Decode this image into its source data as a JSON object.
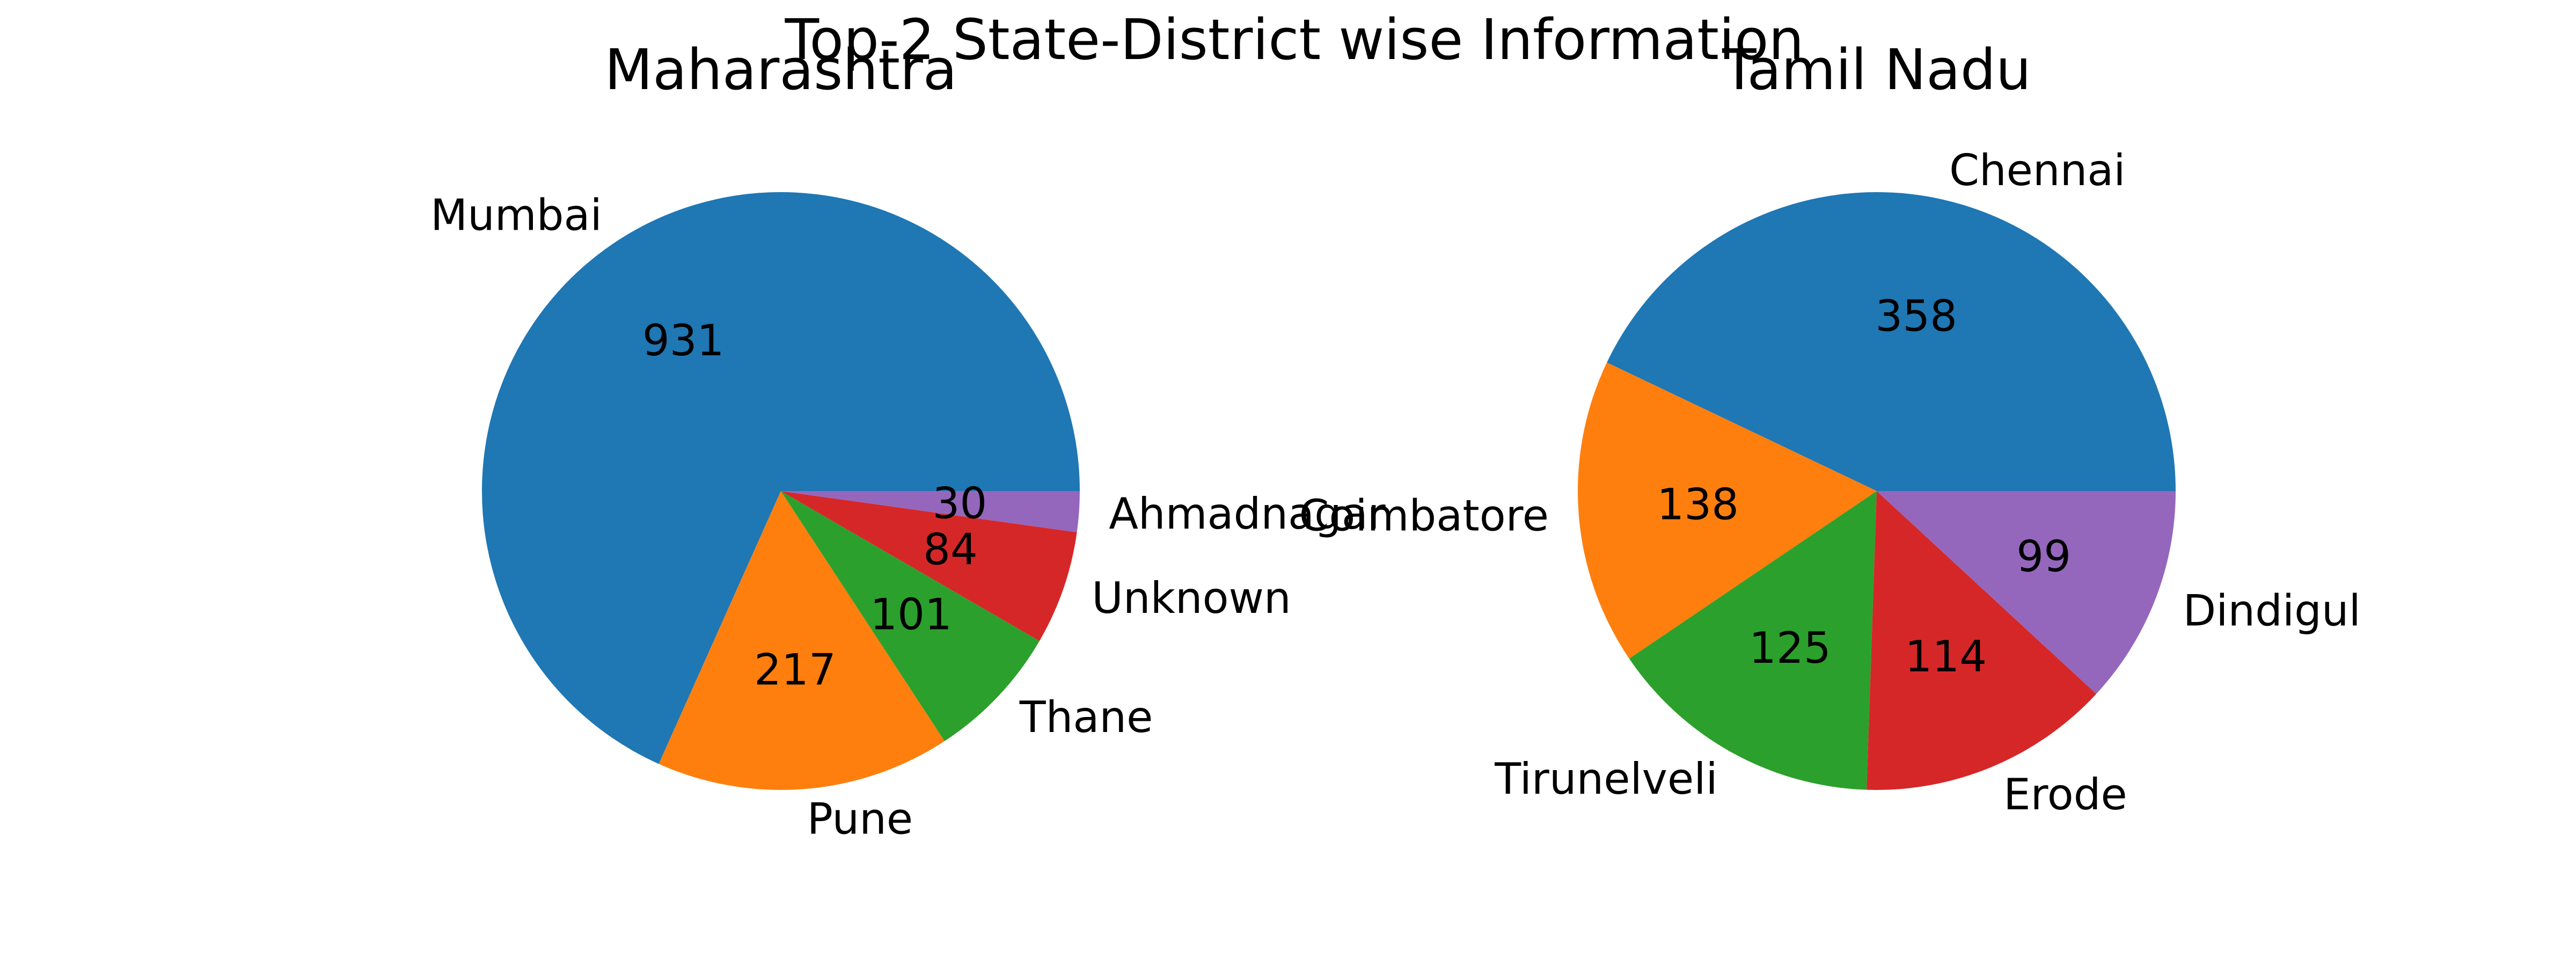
{
  "chart_data": {
    "suptitle": "Top-2 State-District wise Information",
    "charts": [
      {
        "type": "pie",
        "title": "Maharashtra",
        "categories": [
          "Mumbai",
          "Pune",
          "Thane",
          "Unknown",
          "Ahmadnagar"
        ],
        "values": [
          931,
          217,
          101,
          84,
          30
        ],
        "colors": [
          "#1f77b4",
          "#ff7f0e",
          "#2ca02c",
          "#d62728",
          "#9467bd"
        ]
      },
      {
        "type": "pie",
        "title": "Tamil Nadu",
        "categories": [
          "Chennai",
          "Coimbatore",
          "Tirunelveli",
          "Erode",
          "Dindigul"
        ],
        "values": [
          358,
          138,
          125,
          114,
          99
        ],
        "colors": [
          "#1f77b4",
          "#ff7f0e",
          "#2ca02c",
          "#d62728",
          "#9467bd"
        ]
      }
    ]
  }
}
